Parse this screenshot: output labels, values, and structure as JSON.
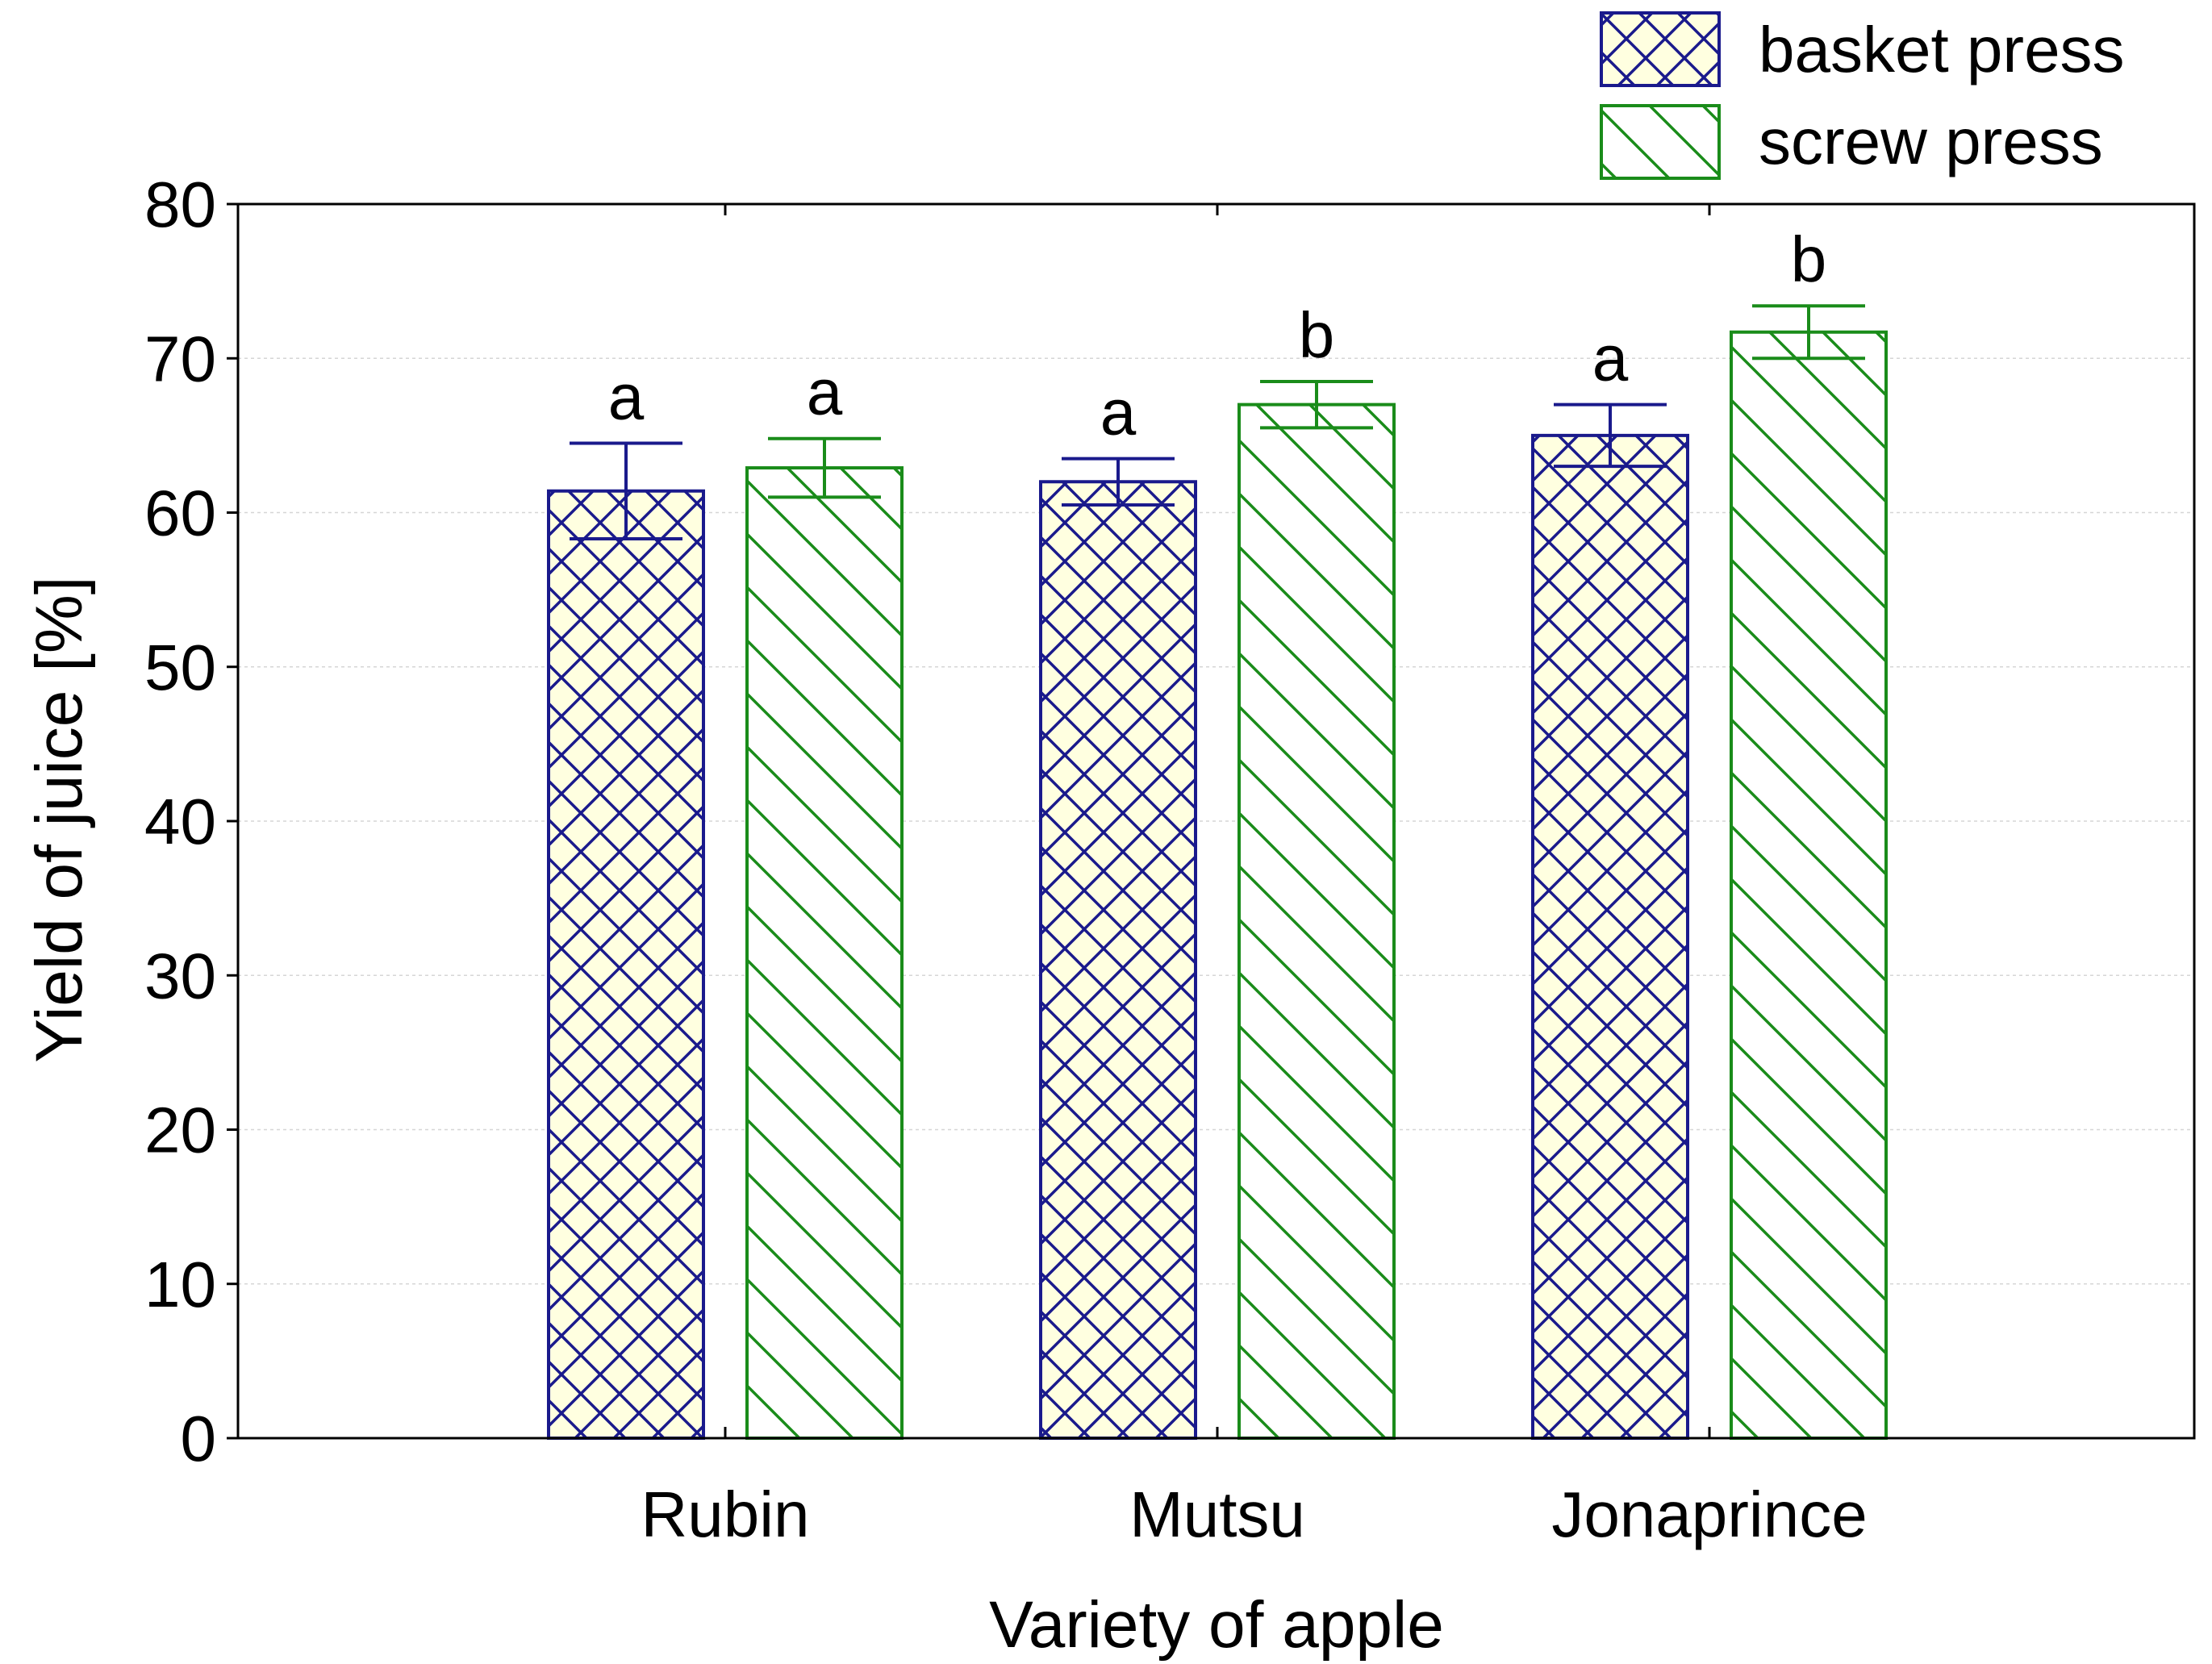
{
  "chart_data": {
    "type": "bar",
    "xlabel": "Variety of apple",
    "ylabel": "Yield of juice [%]",
    "ylim": [
      0,
      80
    ],
    "yticks": [
      0,
      10,
      20,
      30,
      40,
      50,
      60,
      70,
      80
    ],
    "grid": true,
    "legend_position": "top-right",
    "categories": [
      "Rubin",
      "Mutsu",
      "Jonaprince"
    ],
    "series": [
      {
        "name": "basket press",
        "values": [
          61.4,
          62.0,
          65.0
        ],
        "errors": [
          3.1,
          1.5,
          2.0
        ],
        "significance": [
          "a",
          "a",
          "a"
        ],
        "pattern": "crosshatch",
        "stroke_color": "#1a1a8c",
        "fill_color": "#ffffe0"
      },
      {
        "name": "screw press",
        "values": [
          62.9,
          67.0,
          71.7
        ],
        "errors": [
          1.9,
          1.5,
          1.7
        ],
        "significance": [
          "a",
          "b",
          "b"
        ],
        "pattern": "diagonal",
        "stroke_color": "#1a8c1a",
        "fill_color": "#ffffff"
      }
    ]
  }
}
